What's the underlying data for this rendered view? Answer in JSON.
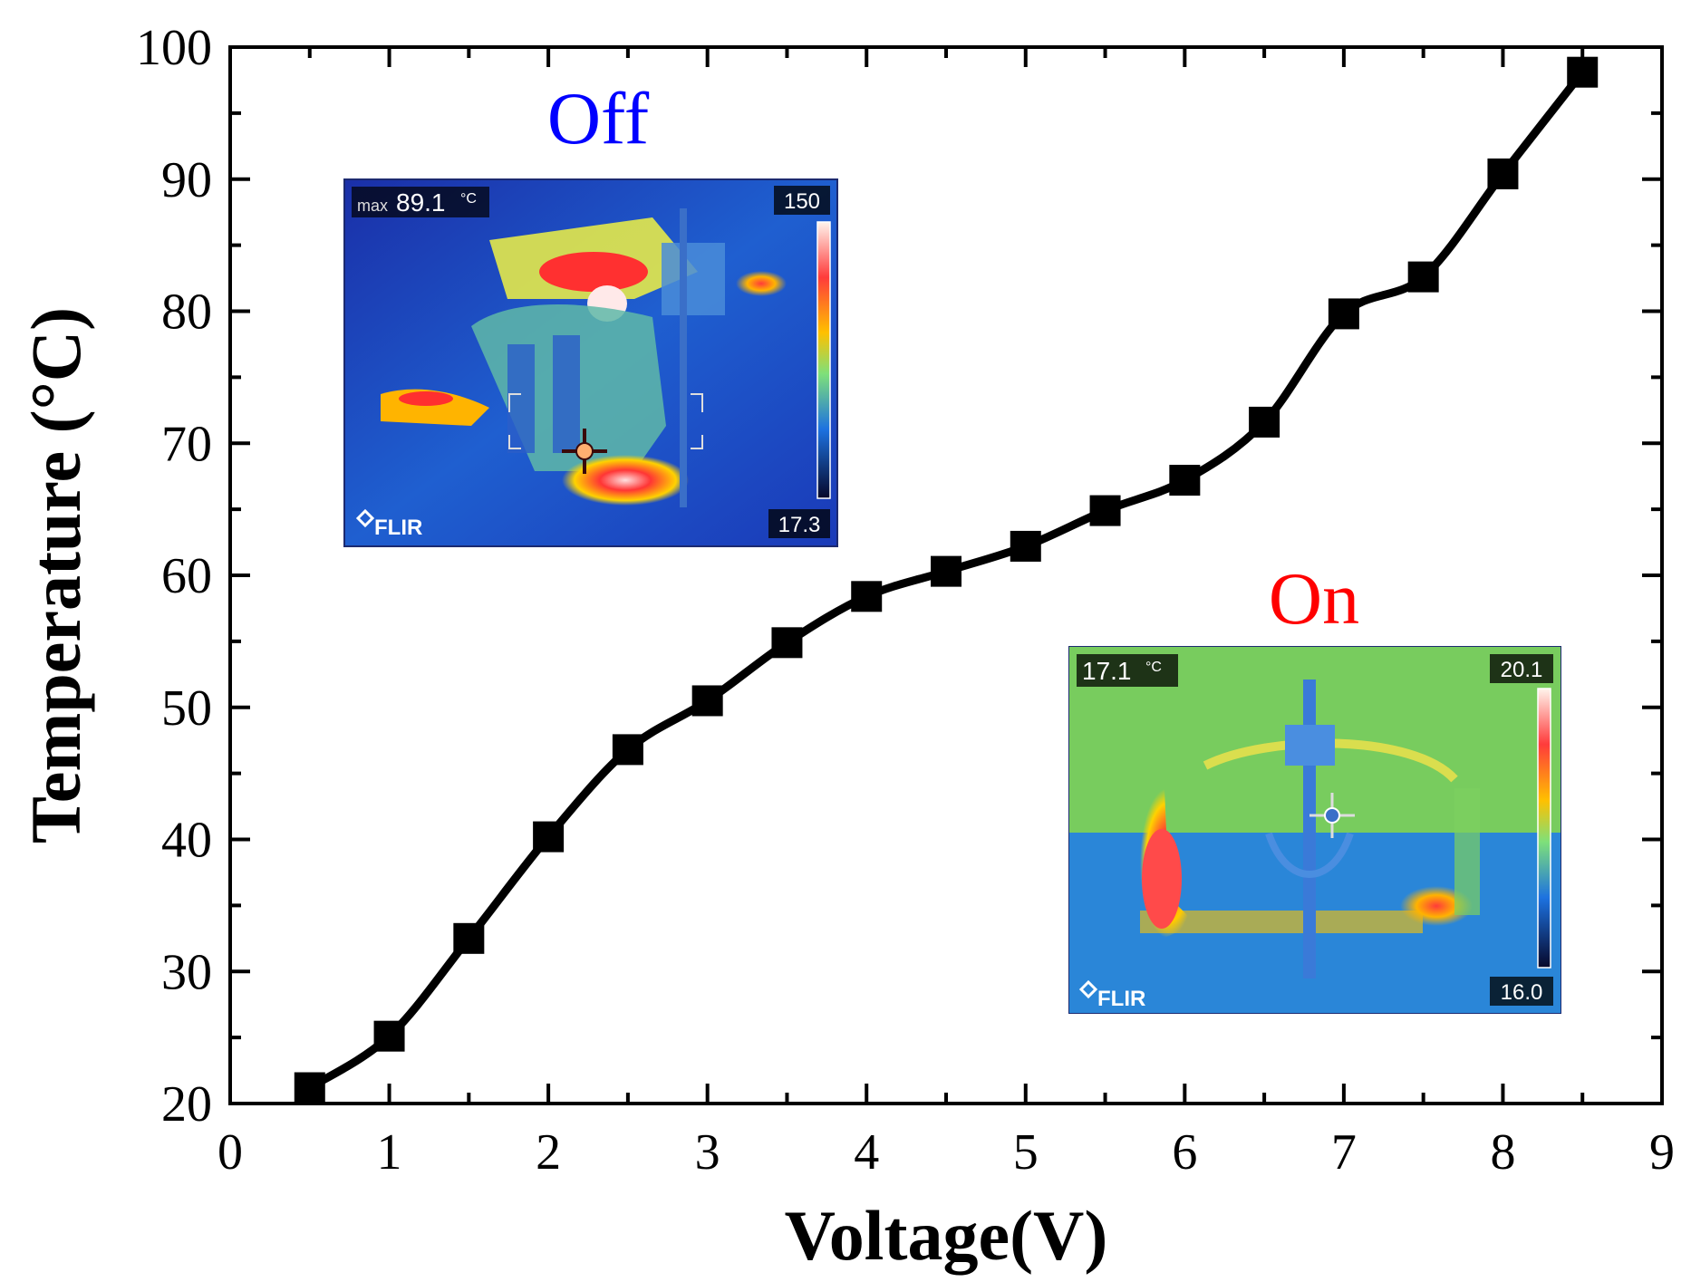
{
  "chart_data": {
    "type": "line",
    "xlabel": "Voltage(V)",
    "ylabel": "Temperature (°C)",
    "xlim": [
      0,
      9
    ],
    "ylim": [
      20,
      100
    ],
    "xticks": [
      0,
      1,
      2,
      3,
      4,
      5,
      6,
      7,
      8,
      9
    ],
    "yticks": [
      20,
      30,
      40,
      50,
      60,
      70,
      80,
      90,
      100
    ],
    "marker": "square",
    "line_color": "#000000",
    "series": [
      {
        "name": "Temperature",
        "x": [
          0.5,
          1.0,
          1.5,
          2.0,
          2.5,
          3.0,
          3.5,
          4.0,
          4.5,
          5.0,
          5.5,
          6.0,
          6.5,
          7.0,
          7.5,
          8.0,
          8.5
        ],
        "y": [
          21.2,
          25.1,
          32.5,
          40.2,
          46.8,
          50.5,
          54.9,
          58.4,
          60.3,
          62.2,
          64.9,
          67.2,
          71.6,
          79.8,
          82.6,
          90.4,
          98.1
        ]
      }
    ],
    "insets": [
      {
        "title": "Off",
        "title_color": "#0000ff",
        "readout_prefix": "max",
        "readout_value": "89.1",
        "readout_unit": "°C",
        "scale_max": "150",
        "scale_min": "17.3",
        "brand": "FLIR"
      },
      {
        "title": "On",
        "title_color": "#ff0000",
        "readout_value": "17.1",
        "readout_unit": "°C",
        "scale_max": "20.1",
        "scale_min": "16.0",
        "brand": "FLIR"
      }
    ]
  }
}
